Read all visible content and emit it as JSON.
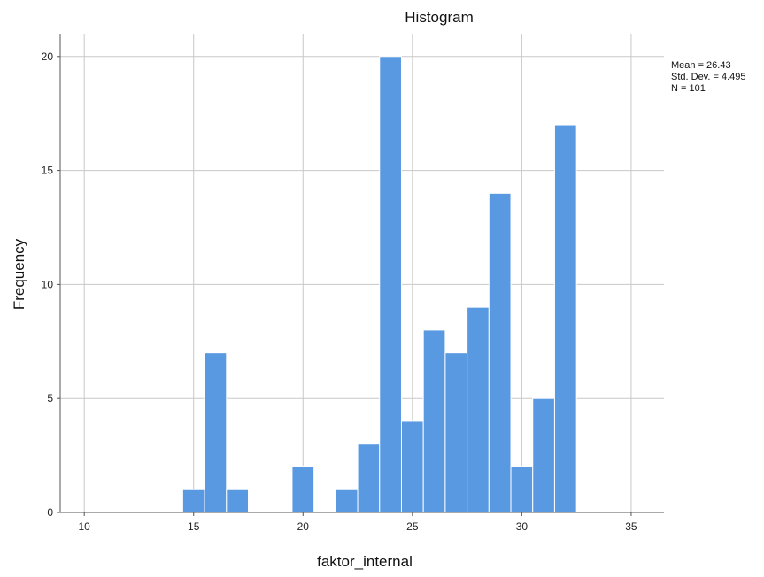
{
  "chart_data": {
    "type": "bar",
    "title": "Histogram",
    "xlabel": "faktor_internal",
    "ylabel": "Frequency",
    "xlim": [
      8.9,
      36.5
    ],
    "ylim": [
      0,
      21
    ],
    "xticks": [
      "10",
      "15",
      "20",
      "25",
      "30",
      "35"
    ],
    "yticks": [
      "0",
      "5",
      "10",
      "15",
      "20"
    ],
    "grid": true,
    "bar_color": "#5899e2",
    "bin_width": 1,
    "bins": [
      {
        "x": 15,
        "value": 1
      },
      {
        "x": 16,
        "value": 7
      },
      {
        "x": 17,
        "value": 1
      },
      {
        "x": 18,
        "value": 0
      },
      {
        "x": 19,
        "value": 0
      },
      {
        "x": 20,
        "value": 2
      },
      {
        "x": 21,
        "value": 0
      },
      {
        "x": 22,
        "value": 1
      },
      {
        "x": 23,
        "value": 3
      },
      {
        "x": 24,
        "value": 20
      },
      {
        "x": 25,
        "value": 4
      },
      {
        "x": 26,
        "value": 8
      },
      {
        "x": 27,
        "value": 7
      },
      {
        "x": 28,
        "value": 9
      },
      {
        "x": 29,
        "value": 14
      },
      {
        "x": 30,
        "value": 2
      },
      {
        "x": 31,
        "value": 5
      },
      {
        "x": 32,
        "value": 17
      }
    ],
    "stats": {
      "mean": "Mean = 26.43",
      "std_dev": "Std. Dev. = 4.495",
      "n": "N = 101"
    }
  }
}
